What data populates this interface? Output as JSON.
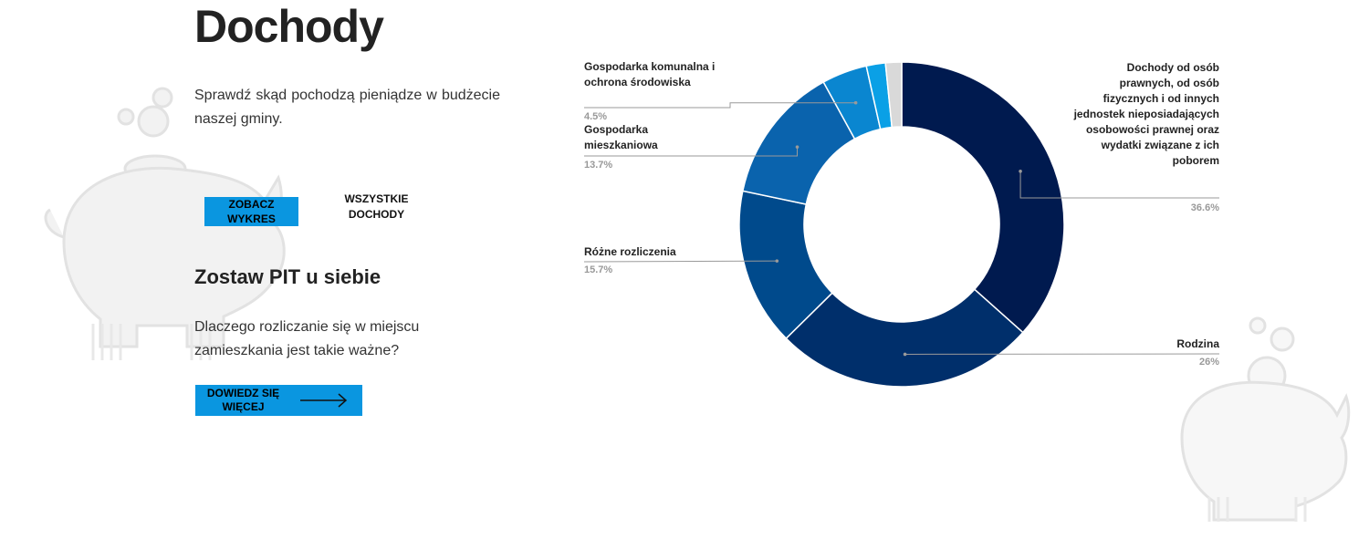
{
  "page": {
    "title": "Dochody",
    "intro": "Sprawdź skąd pochodzą pieniądze w budżecie naszej gminy.",
    "buttons": {
      "show_chart": "ZOBACZ WYKRES",
      "all_income": "WSZYSTKIE DOCHODY",
      "learn_more": "DOWIEDZ SIĘ WIĘCEJ"
    },
    "pit": {
      "heading": "Zostaw PIT u siebie",
      "text": "Dlaczego rozliczanie się w miejscu zamieszkania jest takie ważne?"
    }
  },
  "colors": {
    "accent": "#0a96e0",
    "slices": [
      "#001a4f",
      "#002f6b",
      "#004a8c",
      "#0a63ad",
      "#0a86d0",
      "#0aa0e6",
      "#d9d9d9"
    ]
  },
  "chart_data": {
    "type": "pie",
    "title": "",
    "slices": [
      {
        "label": "Dochody od osób prawnych, od osób fizycznych i od innych jednostek nieposiadających osobowości prawnej oraz wydatki związane z ich poborem",
        "value": 36.6,
        "value_label": "36.6%"
      },
      {
        "label": "Rodzina",
        "value": 26,
        "value_label": "26%"
      },
      {
        "label": "Różne rozliczenia",
        "value": 15.7,
        "value_label": "15.7%"
      },
      {
        "label": "Gospodarka mieszkaniowa",
        "value": 13.7,
        "value_label": "13.7%"
      },
      {
        "label": "Gospodarka komunalna i ochrona środowiska",
        "value": 4.5,
        "value_label": "4.5%"
      },
      {
        "label": "",
        "value": 1.9,
        "value_label": ""
      },
      {
        "label": "",
        "value": 1.6,
        "value_label": ""
      }
    ],
    "donut": true
  }
}
